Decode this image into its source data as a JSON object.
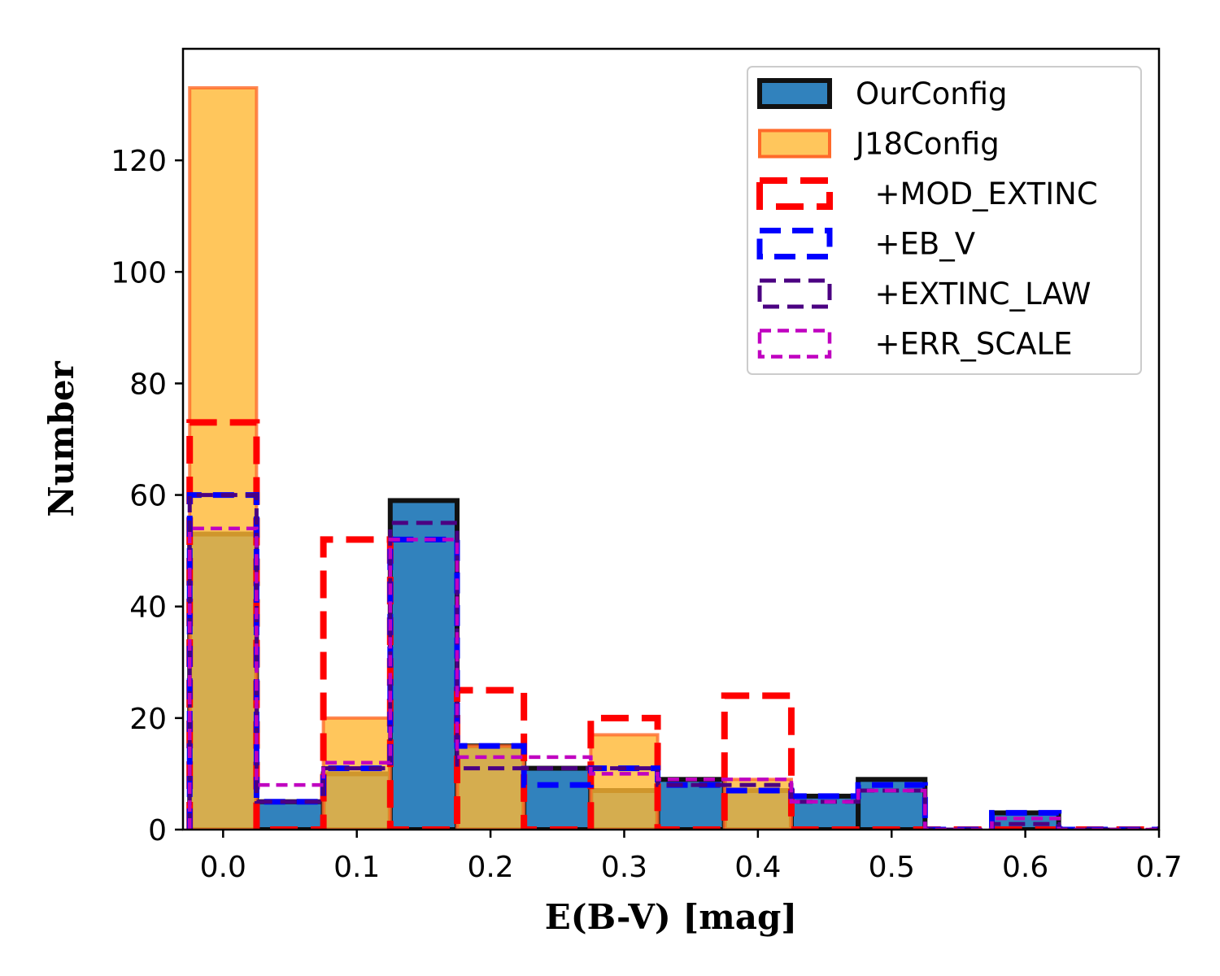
{
  "chart_data": {
    "type": "histogram",
    "xlabel": "E(B-V) [mag]",
    "ylabel": "Number",
    "xlim": [
      -0.03,
      0.7
    ],
    "ylim": [
      0,
      140
    ],
    "xticks": [
      0.0,
      0.1,
      0.2,
      0.3,
      0.4,
      0.5,
      0.6,
      0.7
    ],
    "xtick_labels": [
      "0.0",
      "0.1",
      "0.2",
      "0.3",
      "0.4",
      "0.5",
      "0.6",
      "0.7"
    ],
    "yticks": [
      0,
      20,
      40,
      60,
      80,
      100,
      120
    ],
    "ytick_labels": [
      "0",
      "20",
      "40",
      "60",
      "80",
      "100",
      "120"
    ],
    "bin_edges": [
      -0.025,
      0.025,
      0.075,
      0.125,
      0.175,
      0.225,
      0.275,
      0.325,
      0.375,
      0.425,
      0.475,
      0.525,
      0.575,
      0.625,
      0.675,
      0.725
    ],
    "legend_position": "upper right",
    "series": [
      {
        "name": "OurConfig",
        "label": "OurConfig",
        "kind": "filled",
        "fill": "#3182bd",
        "edge": "#111111",
        "style": "solid",
        "values": [
          53,
          5,
          10,
          59,
          15,
          11,
          7,
          9,
          7,
          6,
          9,
          0,
          3,
          0,
          0
        ]
      },
      {
        "name": "J18Config",
        "label": "J18Config",
        "kind": "filled",
        "fill": "#ffb833",
        "edge": "#ff6a2a",
        "style": "solid",
        "values": [
          133,
          0,
          20,
          0,
          15,
          0,
          17,
          0,
          9,
          0,
          0,
          0,
          0,
          0,
          0
        ]
      },
      {
        "name": "+MOD_EXTINC",
        "label": "  +MOD_EXTINC",
        "kind": "step",
        "edge": "#ff0000",
        "style": "dashed",
        "values": [
          73,
          0,
          52,
          0,
          25,
          0,
          20,
          0,
          24,
          0,
          0,
          0,
          0,
          0,
          0
        ]
      },
      {
        "name": "+EB_V",
        "label": "  +EB_V",
        "kind": "step",
        "edge": "#0000ff",
        "style": "dashed",
        "values": [
          60,
          5,
          11,
          52,
          15,
          8,
          11,
          8,
          7,
          6,
          8,
          0,
          3,
          0,
          0
        ]
      },
      {
        "name": "+EXTINC_LAW",
        "label": "  +EXTINC_LAW",
        "kind": "step",
        "edge": "#4b0082",
        "style": "dashed",
        "values": [
          60,
          5,
          11,
          55,
          11,
          11,
          11,
          8,
          8,
          5,
          7,
          0,
          1,
          0,
          0
        ]
      },
      {
        "name": "+ERR_SCALE",
        "label": "  +ERR_SCALE",
        "kind": "step",
        "edge": "#c000c0",
        "style": "dashed",
        "values": [
          54,
          8,
          12,
          52,
          13,
          13,
          10,
          9,
          9,
          5,
          7,
          0,
          2,
          0,
          0
        ]
      }
    ]
  }
}
